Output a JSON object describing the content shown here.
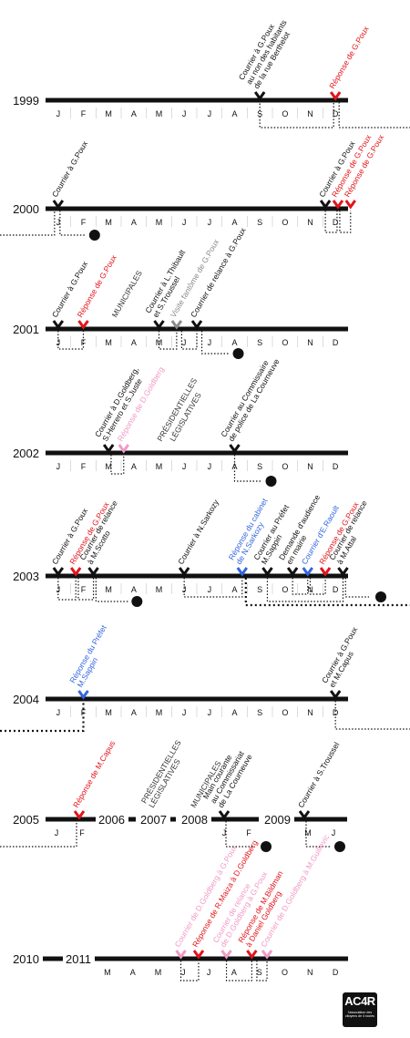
{
  "colors": {
    "black": "#111111",
    "red": "#e3141b",
    "blue": "#3366e0",
    "pink": "#f09ac6",
    "gray": "#8c8c8c"
  },
  "months_full": [
    "J",
    "F",
    "M",
    "A",
    "M",
    "J",
    "J",
    "A",
    "S",
    "O",
    "N",
    "D"
  ],
  "rows": [
    {
      "year": "1999",
      "months": [
        "J",
        "F",
        "M",
        "A",
        "M",
        "J",
        "J",
        "A",
        "S",
        "O",
        "N",
        "D"
      ],
      "events": [
        {
          "m": 8,
          "color": "black",
          "lines": [
            "Courrier à G.Poux",
            "au non des habitants",
            "de la rue Berthelot"
          ]
        },
        {
          "m": 11,
          "color": "red",
          "lines": [
            "Réponse de G.Poux"
          ]
        }
      ]
    },
    {
      "year": "2000",
      "months": [
        "J",
        "F",
        "M",
        "A",
        "M",
        "J",
        "J",
        "A",
        "S",
        "O",
        "N",
        "D"
      ],
      "events": [
        {
          "m": 0,
          "color": "black",
          "lines": [
            "Courrier à G.Poux"
          ]
        },
        {
          "m": 10.6,
          "color": "black",
          "lines": [
            "Courrier à G.Poux"
          ]
        },
        {
          "m": 11.1,
          "color": "red",
          "lines": [
            "Réponse de G.Poux"
          ]
        },
        {
          "m": 11.6,
          "color": "red",
          "lines": [
            "Réponse de G.Poux"
          ]
        }
      ]
    },
    {
      "year": "2001",
      "months": [
        "J",
        "F",
        "M",
        "A",
        "M",
        "J",
        "J",
        "A",
        "S",
        "O",
        "N",
        "D"
      ],
      "labels": [
        {
          "text": "MUNICIPALES",
          "m": 2.3
        }
      ],
      "events": [
        {
          "m": 0,
          "color": "black",
          "lines": [
            "Courrier à G.Poux"
          ]
        },
        {
          "m": 1,
          "color": "red",
          "lines": [
            "Réponse de G.Poux"
          ]
        },
        {
          "m": 4,
          "color": "black",
          "lines": [
            "Courrier à L.Thibault",
            "et S.Troussel"
          ]
        },
        {
          "m": 4.7,
          "color": "gray",
          "lines": [
            "Visite fantôme de G.Poux"
          ]
        },
        {
          "m": 5.5,
          "color": "black",
          "lines": [
            "Courrier de relance à G.Poux"
          ]
        }
      ]
    },
    {
      "year": "2002",
      "months": [
        "J",
        "F",
        "M",
        "A",
        "M",
        "J",
        "J",
        "A",
        "S",
        "O",
        "N",
        "D"
      ],
      "labels": [
        {
          "text": "PRÉSIDENTIELLES",
          "m": 4.1
        },
        {
          "text": "LÉGISLATIVES",
          "m": 4.6
        }
      ],
      "events": [
        {
          "m": 2,
          "color": "black",
          "lines": [
            "Courrier à D.Goldberg,",
            "S.Herrero et S.Juste"
          ]
        },
        {
          "m": 2.6,
          "color": "pink",
          "lines": [
            "Réponse de D.Goldberg"
          ]
        },
        {
          "m": 7,
          "color": "black",
          "lines": [
            "Courrier au Commissaire",
            "de police de La Courneuve"
          ]
        }
      ]
    },
    {
      "year": "2003",
      "months": [
        "J",
        "F",
        "M",
        "A",
        "M",
        "J",
        "J",
        "A",
        "S",
        "O",
        "N",
        "D"
      ],
      "events": [
        {
          "m": 0,
          "color": "black",
          "lines": [
            "Courrier à G.Poux"
          ]
        },
        {
          "m": 0.7,
          "color": "red",
          "lines": [
            "Réponse de G.Poux"
          ]
        },
        {
          "m": 1.4,
          "color": "black",
          "lines": [
            "Courrier de relance",
            "à M.Scotto"
          ]
        },
        {
          "m": 5,
          "color": "black",
          "lines": [
            "Courrier à N.Sarkozy"
          ]
        },
        {
          "m": 7.3,
          "color": "blue",
          "lines": [
            "Réponse du cabinet",
            "de N.Sarkozy"
          ]
        },
        {
          "m": 8.3,
          "color": "black",
          "lines": [
            "Courrier au Préfet",
            "M.Sappin"
          ]
        },
        {
          "m": 9.3,
          "color": "black",
          "lines": [
            "Demande d'audience",
            "en mairie"
          ]
        },
        {
          "m": 9.9,
          "color": "blue",
          "lines": [
            "Courrier d'E.Raoult"
          ]
        },
        {
          "m": 10.6,
          "color": "red",
          "lines": [
            "Réponse de G.Poux"
          ]
        },
        {
          "m": 11.3,
          "color": "black",
          "lines": [
            "Courrier de relance",
            "à M.Attal"
          ]
        }
      ]
    },
    {
      "year": "2004",
      "months": [
        "J",
        "F",
        "M",
        "A",
        "M",
        "J",
        "J",
        "A",
        "S",
        "O",
        "N",
        "D"
      ],
      "events": [
        {
          "m": 1,
          "color": "blue",
          "lines": [
            "Réponse du Préfet",
            "M.Sappin"
          ]
        },
        {
          "m": 11,
          "color": "black",
          "lines": [
            "Courrier à G.Poux",
            "et M.Capus"
          ]
        }
      ]
    }
  ],
  "row2005": {
    "years": [
      "2005",
      "2006",
      "2007",
      "2008",
      "2009"
    ],
    "labels_2005": [
      "J",
      "F"
    ],
    "labels_2008": [
      "J",
      "F"
    ],
    "labels_2009": [
      "M",
      "J"
    ],
    "vertical_labels": [
      {
        "lines": [
          "PRÉSIDENTIELLES",
          "LÉGISLATIVES"
        ]
      },
      {
        "lines": [
          "MUNICIPALES"
        ]
      }
    ],
    "events": [
      {
        "color": "red",
        "lines": [
          "Réponse de M.Capus"
        ]
      },
      {
        "color": "black",
        "lines": [
          "Main courante",
          "au Commissariat",
          "de La Courneuve"
        ]
      },
      {
        "color": "black",
        "lines": [
          "Courrier à S.Troussel"
        ]
      }
    ]
  },
  "row2010": {
    "years": [
      "2010",
      "2011"
    ],
    "months": [
      "M",
      "A",
      "M",
      "J",
      "J",
      "A",
      "S",
      "O",
      "N",
      "D"
    ],
    "events": [
      {
        "m": 3.4,
        "color": "pink",
        "lines": [
          "Courrier de D.Goldberg à G.Poux"
        ]
      },
      {
        "m": 4.1,
        "color": "red",
        "lines": [
          "Réponse de R.Maiza à D.Goldberg"
        ]
      },
      {
        "m": 5.2,
        "color": "pink",
        "lines": [
          "Courrier de relance",
          "de D.Goldberg à G.Poux"
        ]
      },
      {
        "m": 6.2,
        "color": "red",
        "lines": [
          "Réponse de M.Bildman",
          "à Daniel Goldberg"
        ]
      },
      {
        "m": 6.8,
        "color": "pink",
        "lines": [
          "Courrier de D.Goldberg à M.Guillevic"
        ]
      }
    ]
  },
  "logo": {
    "text": "AC4R",
    "sub": "l'association des citoyens de 4 routes"
  },
  "question_mark": "?"
}
